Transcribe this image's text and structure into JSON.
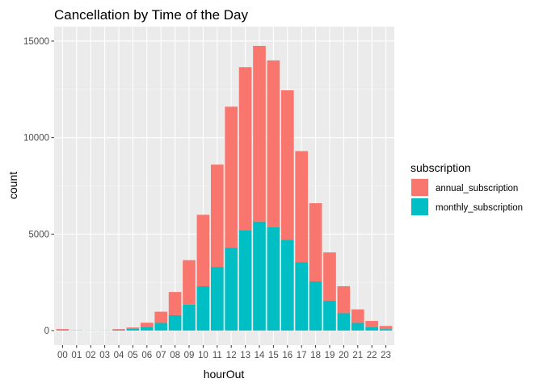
{
  "chart_data": {
    "type": "bar",
    "stacked": true,
    "title": "Cancellation by Time of the Day",
    "xlabel": "hourOut",
    "ylabel": "count",
    "ylim": [
      0,
      15000
    ],
    "yticks": [
      0,
      5000,
      10000,
      15000
    ],
    "grid": true,
    "legend_position": "right",
    "legend_title": "subscription",
    "categories": [
      "00",
      "01",
      "02",
      "03",
      "04",
      "05",
      "06",
      "07",
      "08",
      "09",
      "10",
      "11",
      "12",
      "13",
      "14",
      "15",
      "16",
      "17",
      "18",
      "19",
      "20",
      "21",
      "22",
      "23"
    ],
    "series": [
      {
        "name": "annual_subscription",
        "color": "#F8766D",
        "values": [
          40,
          10,
          5,
          0,
          30,
          60,
          210,
          580,
          1200,
          2300,
          3700,
          5300,
          7300,
          8450,
          9100,
          8650,
          7750,
          5750,
          4050,
          2500,
          1400,
          700,
          330,
          160
        ]
      },
      {
        "name": "monthly_subscription",
        "color": "#00BFC4",
        "values": [
          40,
          10,
          5,
          10,
          50,
          100,
          200,
          400,
          800,
          1350,
          2300,
          3300,
          4300,
          5200,
          5650,
          5350,
          4700,
          3550,
          2550,
          1550,
          900,
          400,
          170,
          80
        ]
      }
    ]
  }
}
